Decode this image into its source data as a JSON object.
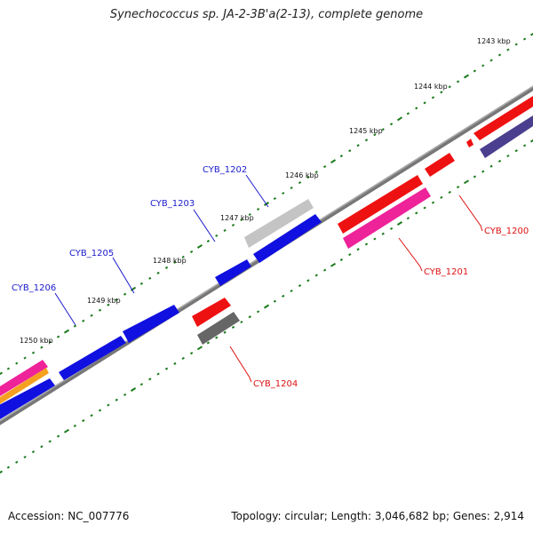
{
  "title": "Synechococcus sp. JA-2-3B'a(2-13), complete genome",
  "accession_text": "Accession: NC_007776",
  "summary_text": "Topology: circular; Length: 3,046,682 bp; Genes: 2,914",
  "scale_ticks": [
    "1243 kbp",
    "1244 kbp",
    "1245 kbp",
    "1246 kbp",
    "1247 kbp",
    "1248 kbp",
    "1249 kbp",
    "1250 kbp"
  ],
  "gene_labels": {
    "forward": [
      "CYB_1202",
      "CYB_1203",
      "CYB_1205",
      "CYB_1206"
    ],
    "reverse": [
      "CYB_1200",
      "CYB_1201",
      "CYB_1204"
    ]
  },
  "colors": {
    "label_forward": "#1a1acc",
    "label_reverse": "#dd1111",
    "tick_green": "#1a7a1a",
    "backbone": "#7a7a7a",
    "gene_blue": "#1010e0",
    "gene_red": "#ee1111",
    "gene_pink": "#ee2299",
    "gene_orange": "#f5a020",
    "gene_gray_light": "#c4c4c4",
    "gene_gray_dark": "#666666",
    "gene_slate": "#4a3f8e"
  }
}
